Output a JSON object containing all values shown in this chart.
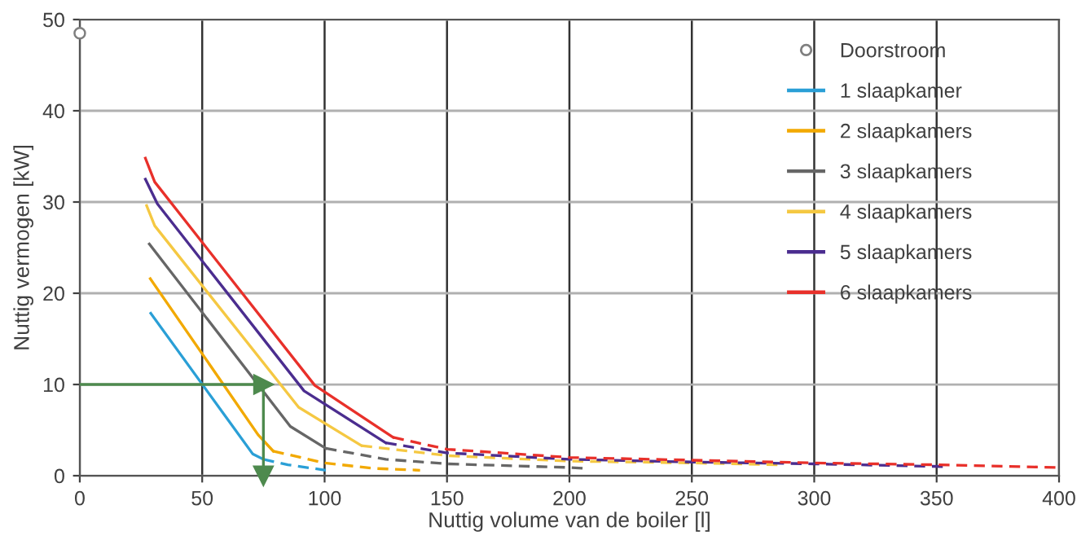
{
  "chart_data": {
    "type": "line",
    "xlabel": "Nuttig volume van de boiler [l]",
    "ylabel": "Nuttig vermogen [kW]",
    "xlim": [
      0,
      400
    ],
    "xticks": [
      0,
      50,
      100,
      150,
      200,
      250,
      300,
      350,
      400
    ],
    "ylim": [
      0,
      50
    ],
    "yticks": [
      0,
      10,
      20,
      30,
      40,
      50
    ],
    "grid": true,
    "legend": "top right",
    "series": [
      {
        "name": "Doorstroom",
        "type": "scatter",
        "marker": "circle",
        "color": "#7f7f7f",
        "x": [
          0
        ],
        "values": [
          48.5
        ]
      },
      {
        "name": "1 slaapkamer",
        "color": "#2a9fd6",
        "line_style": "solid",
        "x": [
          29,
          70.6,
          75
        ],
        "values": [
          17.8,
          2.4,
          1.8
        ]
      },
      {
        "color": "#2a9fd6",
        "line_style": "dashed",
        "x": [
          75,
          85,
          100.5
        ],
        "values": [
          1.8,
          1.2,
          0.6
        ]
      },
      {
        "name": "2 slaapkamers",
        "color": "#f2a900",
        "line_style": "solid",
        "x": [
          28.8,
          72.8,
          79
        ],
        "values": [
          21.6,
          4.5,
          2.7
        ]
      },
      {
        "color": "#f2a900",
        "line_style": "dashed",
        "x": [
          79,
          100,
          120,
          139
        ],
        "values": [
          2.7,
          1.4,
          0.8,
          0.6
        ]
      },
      {
        "name": "3 slaapkamers",
        "color": "#666666",
        "line_style": "solid",
        "x": [
          28.4,
          86,
          100.5
        ],
        "values": [
          25.4,
          5.4,
          3.0
        ]
      },
      {
        "color": "#666666",
        "line_style": "dashed",
        "x": [
          100.5,
          125,
          150,
          200,
          207
        ],
        "values": [
          3.0,
          1.8,
          1.3,
          0.9,
          0.8
        ]
      },
      {
        "name": "4 slaapkamers",
        "color": "#f5c842",
        "line_style": "solid",
        "x": [
          27.3,
          30.6,
          89.4,
          115
        ],
        "values": [
          29.6,
          27.4,
          7.5,
          3.3
        ]
      },
      {
        "color": "#f5c842",
        "line_style": "dashed",
        "x": [
          115,
          150,
          200,
          250,
          285
        ],
        "values": [
          3.3,
          2.2,
          1.6,
          1.4,
          1.2
        ]
      },
      {
        "name": "5 slaapkamers",
        "color": "#4b2d8f",
        "line_style": "solid",
        "x": [
          26.8,
          31.7,
          91.6,
          125
        ],
        "values": [
          32.5,
          29.8,
          9.3,
          3.6
        ]
      },
      {
        "color": "#4b2d8f",
        "line_style": "dashed",
        "x": [
          125,
          150,
          200,
          250,
          300,
          353
        ],
        "values": [
          3.6,
          2.5,
          1.8,
          1.5,
          1.3,
          1.0
        ]
      },
      {
        "name": "6 slaapkamers",
        "color": "#e8302a",
        "line_style": "solid",
        "x": [
          26.8,
          30.6,
          96,
          128
        ],
        "values": [
          34.8,
          32.2,
          9.9,
          4.2
        ]
      },
      {
        "color": "#e8302a",
        "line_style": "dashed",
        "x": [
          128,
          150,
          200,
          250,
          300,
          350,
          400
        ],
        "values": [
          4.2,
          2.9,
          2.0,
          1.7,
          1.4,
          1.2,
          0.9
        ]
      },
      {
        "color": "#4e8a4e",
        "line_style": "solid",
        "marker": "triangle",
        "x": [
          0,
          75
        ],
        "values": [
          10,
          10
        ]
      },
      {
        "color": "#4e8a4e",
        "line_style": "solid",
        "marker": "triangle",
        "x": [
          75,
          75
        ],
        "values": [
          10,
          0
        ]
      }
    ]
  }
}
